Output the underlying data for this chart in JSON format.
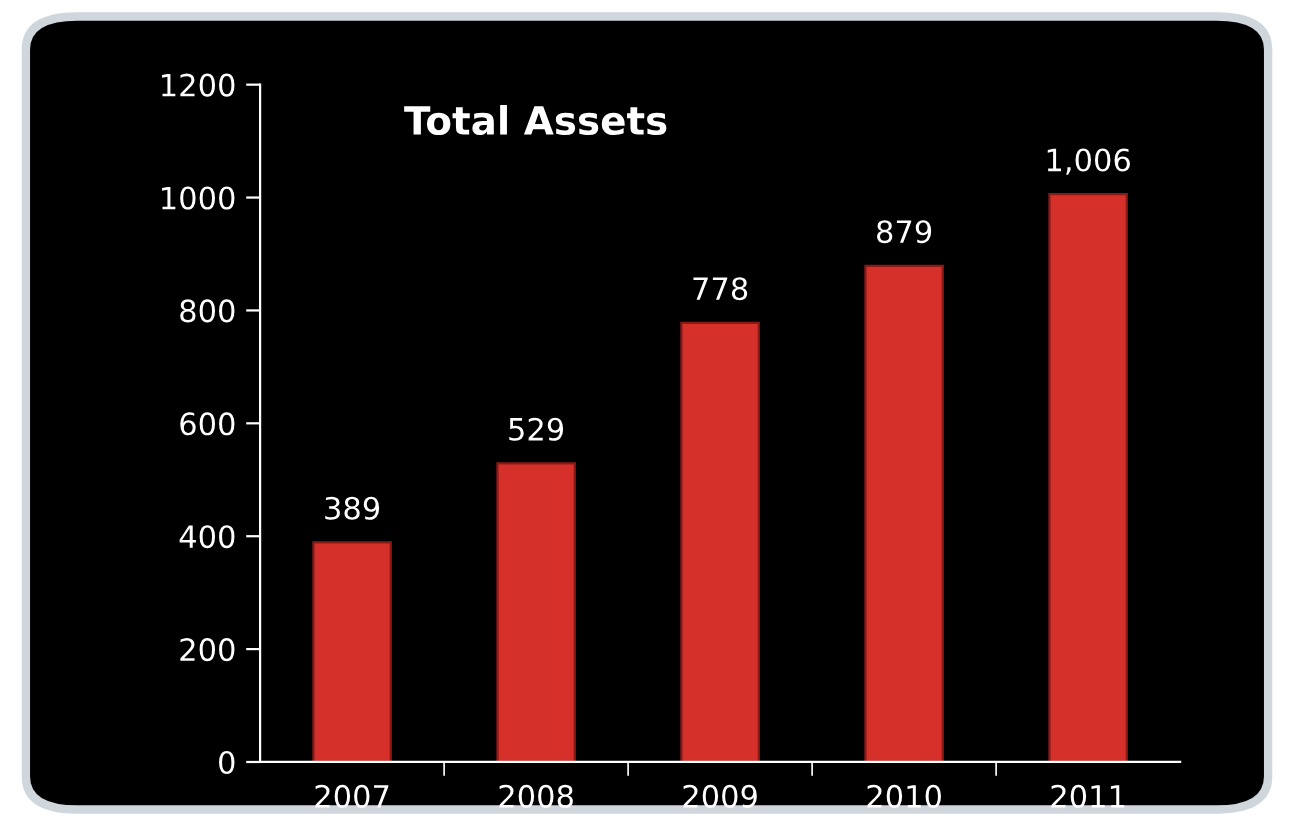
{
  "chart_data": {
    "type": "bar",
    "title": "Total Assets",
    "categories": [
      "2007",
      "2008",
      "2009",
      "2010",
      "2011"
    ],
    "values": [
      389,
      529,
      778,
      879,
      1006
    ],
    "value_labels": [
      "389",
      "529",
      "778",
      "879",
      "1,006"
    ],
    "color": "#d6302b",
    "ylim": [
      0,
      1200
    ],
    "yticks": [
      0,
      200,
      400,
      600,
      800,
      1000,
      1200
    ],
    "grid": false
  }
}
